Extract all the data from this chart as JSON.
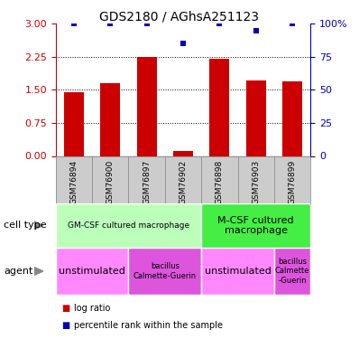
{
  "title": "GDS2180 / AGhsA251123",
  "samples": [
    "GSM76894",
    "GSM76900",
    "GSM76897",
    "GSM76902",
    "GSM76898",
    "GSM76903",
    "GSM76899"
  ],
  "log_ratio": [
    1.45,
    1.65,
    2.25,
    0.12,
    2.2,
    1.72,
    1.7
  ],
  "percentile": [
    100,
    100,
    100,
    85,
    100,
    95,
    100
  ],
  "ylim_left": [
    0,
    3
  ],
  "ylim_right": [
    0,
    100
  ],
  "yticks_left": [
    0,
    0.75,
    1.5,
    2.25,
    3
  ],
  "yticks_right": [
    0,
    25,
    50,
    75,
    100
  ],
  "bar_color": "#cc0000",
  "dot_color": "#0000bb",
  "cell_type_rows": [
    {
      "label": "GM-CSF cultured macrophage",
      "start": 0,
      "end": 4,
      "color": "#bbffbb",
      "label_size": 6.5
    },
    {
      "label": "M-CSF cultured\nmacrophage",
      "start": 4,
      "end": 7,
      "color": "#44ee44",
      "label_size": 8
    }
  ],
  "agent_rows": [
    {
      "label": "unstimulated",
      "start": 0,
      "end": 2,
      "color": "#ff88ff",
      "label_size": 8
    },
    {
      "label": "bacillus\nCalmette-Guerin",
      "start": 2,
      "end": 4,
      "color": "#dd55dd",
      "label_size": 6
    },
    {
      "label": "unstimulated",
      "start": 4,
      "end": 6,
      "color": "#ff88ff",
      "label_size": 8
    },
    {
      "label": "bacillus\nCalmette\n-Guerin",
      "start": 6,
      "end": 7,
      "color": "#dd55dd",
      "label_size": 6
    }
  ],
  "tick_color_left": "#cc0000",
  "tick_color_right": "#0000bb",
  "grid_yticks": [
    0.75,
    1.5,
    2.25
  ],
  "sample_bg_color": "#cccccc",
  "legend_items": [
    {
      "color": "#cc0000",
      "label": "log ratio"
    },
    {
      "color": "#0000bb",
      "label": "percentile rank within the sample"
    }
  ]
}
